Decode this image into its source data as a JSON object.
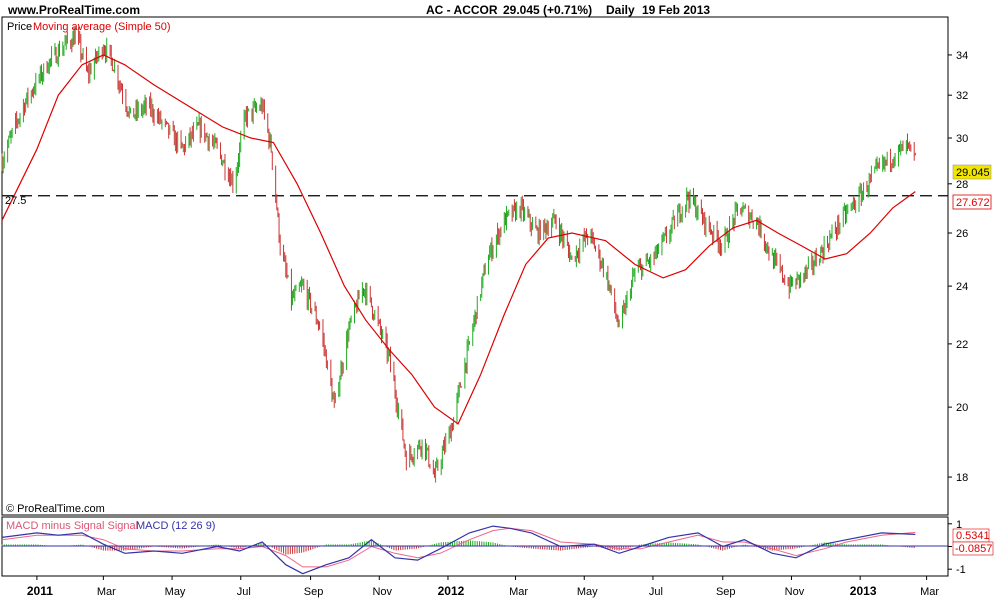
{
  "header": {
    "site": "www.ProRealTime.com",
    "ticker": "AC - ACCOR",
    "last": "29.045 (+0.71%)",
    "period": "Daily",
    "date": "19 Feb 2013"
  },
  "price_panel": {
    "legend_price": "Price",
    "legend_ma": "Moving average (Simple 50)",
    "copyright": "© ProRealTime.com",
    "hline_label": "27.5",
    "last_price_tag": "29.045",
    "ma_tag": "27.672"
  },
  "macd_panel": {
    "legend_hist": "MACD minus Signal Signal",
    "legend_macd": "MACD (12 26 9)",
    "macd_tag": "0.5341",
    "hist_tag": "-0.0857"
  },
  "colors": {
    "up": "#22aa22",
    "down": "#cc3333",
    "ma": "#dd0000",
    "macd": "#3333aa",
    "signal": "#ee6688",
    "tag_price": "#f2e600",
    "tag_ma": "#ffffff"
  },
  "chart_data": [
    {
      "type": "candlestick",
      "title": "AC - ACCOR",
      "ylim": [
        17,
        36
      ],
      "y_ticks": [
        18,
        20,
        22,
        24,
        26,
        28,
        30,
        32,
        34
      ],
      "x_ticks": [
        "2011",
        "Mar",
        "May",
        "Jul",
        "Sep",
        "Nov",
        "2012",
        "Mar",
        "May",
        "Jul",
        "Sep",
        "Nov",
        "2013",
        "Mar"
      ],
      "x_range": [
        "2010-12-01",
        "2013-03-20"
      ],
      "horizontal_line": 27.5,
      "close_path": [
        [
          "2010-12-01",
          29.0
        ],
        [
          "2010-12-20",
          31.5
        ],
        [
          "2011-01-10",
          33.5
        ],
        [
          "2011-01-25",
          34.5
        ],
        [
          "2011-02-05",
          35.0
        ],
        [
          "2011-02-15",
          33.0
        ],
        [
          "2011-03-01",
          34.5
        ],
        [
          "2011-03-10",
          33.5
        ],
        [
          "2011-03-25",
          31.0
        ],
        [
          "2011-04-10",
          31.5
        ],
        [
          "2011-04-25",
          30.5
        ],
        [
          "2011-05-10",
          29.5
        ],
        [
          "2011-05-25",
          30.5
        ],
        [
          "2011-06-10",
          29.5
        ],
        [
          "2011-06-25",
          28.0
        ],
        [
          "2011-07-05",
          31.0
        ],
        [
          "2011-07-20",
          31.5
        ],
        [
          "2011-07-28",
          29.5
        ],
        [
          "2011-08-05",
          25.5
        ],
        [
          "2011-08-15",
          23.5
        ],
        [
          "2011-08-25",
          24.0
        ],
        [
          "2011-09-10",
          22.5
        ],
        [
          "2011-09-22",
          20.0
        ],
        [
          "2011-10-05",
          22.5
        ],
        [
          "2011-10-18",
          24.0
        ],
        [
          "2011-10-28",
          23.0
        ],
        [
          "2011-11-10",
          21.5
        ],
        [
          "2011-11-25",
          18.5
        ],
        [
          "2011-12-10",
          19.0
        ],
        [
          "2011-12-20",
          18.0
        ],
        [
          "2012-01-05",
          19.5
        ],
        [
          "2012-01-20",
          22.0
        ],
        [
          "2012-02-05",
          25.0
        ],
        [
          "2012-02-20",
          26.5
        ],
        [
          "2012-03-05",
          27.0
        ],
        [
          "2012-03-20",
          26.0
        ],
        [
          "2012-04-05",
          26.5
        ],
        [
          "2012-04-20",
          25.0
        ],
        [
          "2012-05-05",
          26.0
        ],
        [
          "2012-05-20",
          24.5
        ],
        [
          "2012-06-01",
          22.5
        ],
        [
          "2012-06-15",
          24.5
        ],
        [
          "2012-07-01",
          25.0
        ],
        [
          "2012-07-15",
          26.0
        ],
        [
          "2012-08-01",
          27.5
        ],
        [
          "2012-08-15",
          26.5
        ],
        [
          "2012-09-01",
          25.5
        ],
        [
          "2012-09-15",
          27.0
        ],
        [
          "2012-10-01",
          26.5
        ],
        [
          "2012-10-15",
          25.0
        ],
        [
          "2012-10-30",
          24.0
        ],
        [
          "2012-11-15",
          24.5
        ],
        [
          "2012-12-01",
          25.5
        ],
        [
          "2012-12-15",
          26.5
        ],
        [
          "2013-01-01",
          27.5
        ],
        [
          "2013-01-15",
          28.5
        ],
        [
          "2013-02-01",
          29.3
        ],
        [
          "2013-02-12",
          29.6
        ],
        [
          "2013-02-19",
          29.045
        ]
      ],
      "series": [
        {
          "name": "Moving average (Simple 50)",
          "points": [
            [
              "2010-12-01",
              26.5
            ],
            [
              "2011-01-01",
              29.5
            ],
            [
              "2011-01-20",
              32.0
            ],
            [
              "2011-02-10",
              33.5
            ],
            [
              "2011-03-01",
              34.0
            ],
            [
              "2011-03-20",
              33.5
            ],
            [
              "2011-04-15",
              32.5
            ],
            [
              "2011-05-15",
              31.5
            ],
            [
              "2011-06-15",
              30.5
            ],
            [
              "2011-07-10",
              30.0
            ],
            [
              "2011-07-30",
              29.8
            ],
            [
              "2011-08-20",
              28.0
            ],
            [
              "2011-09-10",
              26.0
            ],
            [
              "2011-10-01",
              24.0
            ],
            [
              "2011-10-20",
              22.8
            ],
            [
              "2011-11-10",
              21.8
            ],
            [
              "2011-11-30",
              21.0
            ],
            [
              "2011-12-20",
              20.0
            ],
            [
              "2012-01-10",
              19.5
            ],
            [
              "2012-01-30",
              21.0
            ],
            [
              "2012-02-20",
              23.0
            ],
            [
              "2012-03-10",
              24.8
            ],
            [
              "2012-03-30",
              25.8
            ],
            [
              "2012-04-20",
              26.0
            ],
            [
              "2012-05-20",
              25.7
            ],
            [
              "2012-06-15",
              24.8
            ],
            [
              "2012-07-10",
              24.3
            ],
            [
              "2012-07-30",
              24.6
            ],
            [
              "2012-08-20",
              25.5
            ],
            [
              "2012-09-10",
              26.2
            ],
            [
              "2012-10-01",
              26.5
            ],
            [
              "2012-10-20",
              26.0
            ],
            [
              "2012-11-10",
              25.5
            ],
            [
              "2012-12-01",
              25.0
            ],
            [
              "2012-12-20",
              25.2
            ],
            [
              "2013-01-10",
              26.0
            ],
            [
              "2013-01-30",
              27.0
            ],
            [
              "2013-02-19",
              27.672
            ]
          ]
        }
      ]
    },
    {
      "type": "line",
      "title": "MACD (12 26 9)",
      "ylim": [
        -1.3,
        1.3
      ],
      "y_ticks": [
        -1,
        0,
        1
      ],
      "series": [
        {
          "name": "MACD (12 26 9)",
          "points": [
            [
              "2010-12-01",
              0.4
            ],
            [
              "2011-01-01",
              0.6
            ],
            [
              "2011-01-20",
              0.5
            ],
            [
              "2011-02-10",
              0.6
            ],
            [
              "2011-03-01",
              0.1
            ],
            [
              "2011-03-20",
              -0.3
            ],
            [
              "2011-04-15",
              -0.2
            ],
            [
              "2011-05-10",
              -0.3
            ],
            [
              "2011-06-10",
              0.0
            ],
            [
              "2011-06-30",
              -0.2
            ],
            [
              "2011-07-20",
              0.2
            ],
            [
              "2011-08-10",
              -0.8
            ],
            [
              "2011-08-25",
              -1.2
            ],
            [
              "2011-09-15",
              -0.8
            ],
            [
              "2011-10-05",
              -0.5
            ],
            [
              "2011-10-25",
              0.3
            ],
            [
              "2011-11-15",
              -0.5
            ],
            [
              "2011-12-05",
              -0.6
            ],
            [
              "2011-12-25",
              -0.1
            ],
            [
              "2012-01-20",
              0.6
            ],
            [
              "2012-02-10",
              0.9
            ],
            [
              "2012-02-25",
              0.8
            ],
            [
              "2012-03-15",
              0.6
            ],
            [
              "2012-04-10",
              0.0
            ],
            [
              "2012-05-10",
              0.1
            ],
            [
              "2012-06-01",
              -0.3
            ],
            [
              "2012-06-20",
              0.0
            ],
            [
              "2012-07-15",
              0.4
            ],
            [
              "2012-08-10",
              0.6
            ],
            [
              "2012-09-01",
              0.0
            ],
            [
              "2012-09-20",
              0.3
            ],
            [
              "2012-10-15",
              -0.3
            ],
            [
              "2012-11-05",
              -0.5
            ],
            [
              "2012-11-30",
              0.1
            ],
            [
              "2012-12-20",
              0.3
            ],
            [
              "2013-01-20",
              0.6
            ],
            [
              "2013-02-19",
              0.5341
            ]
          ]
        },
        {
          "name": "Signal",
          "points": [
            [
              "2010-12-01",
              0.3
            ],
            [
              "2011-01-01",
              0.5
            ],
            [
              "2011-01-20",
              0.5
            ],
            [
              "2011-02-10",
              0.5
            ],
            [
              "2011-03-01",
              0.3
            ],
            [
              "2011-03-20",
              -0.1
            ],
            [
              "2011-04-15",
              -0.2
            ],
            [
              "2011-05-10",
              -0.2
            ],
            [
              "2011-06-10",
              -0.1
            ],
            [
              "2011-06-30",
              -0.1
            ],
            [
              "2011-07-20",
              0.0
            ],
            [
              "2011-08-10",
              -0.4
            ],
            [
              "2011-08-25",
              -0.9
            ],
            [
              "2011-09-15",
              -0.9
            ],
            [
              "2011-10-05",
              -0.6
            ],
            [
              "2011-10-25",
              0.0
            ],
            [
              "2011-11-15",
              -0.3
            ],
            [
              "2011-12-05",
              -0.5
            ],
            [
              "2011-12-25",
              -0.3
            ],
            [
              "2012-01-20",
              0.3
            ],
            [
              "2012-02-10",
              0.7
            ],
            [
              "2012-02-25",
              0.8
            ],
            [
              "2012-03-15",
              0.7
            ],
            [
              "2012-04-10",
              0.2
            ],
            [
              "2012-05-10",
              0.1
            ],
            [
              "2012-06-01",
              -0.1
            ],
            [
              "2012-06-20",
              -0.1
            ],
            [
              "2012-07-15",
              0.2
            ],
            [
              "2012-08-10",
              0.5
            ],
            [
              "2012-09-01",
              0.2
            ],
            [
              "2012-09-20",
              0.2
            ],
            [
              "2012-10-15",
              -0.1
            ],
            [
              "2012-11-05",
              -0.4
            ],
            [
              "2012-11-30",
              -0.1
            ],
            [
              "2012-12-20",
              0.2
            ],
            [
              "2013-01-20",
              0.5
            ],
            [
              "2013-02-19",
              0.62
            ]
          ]
        }
      ],
      "histogram_last": -0.0857
    }
  ]
}
